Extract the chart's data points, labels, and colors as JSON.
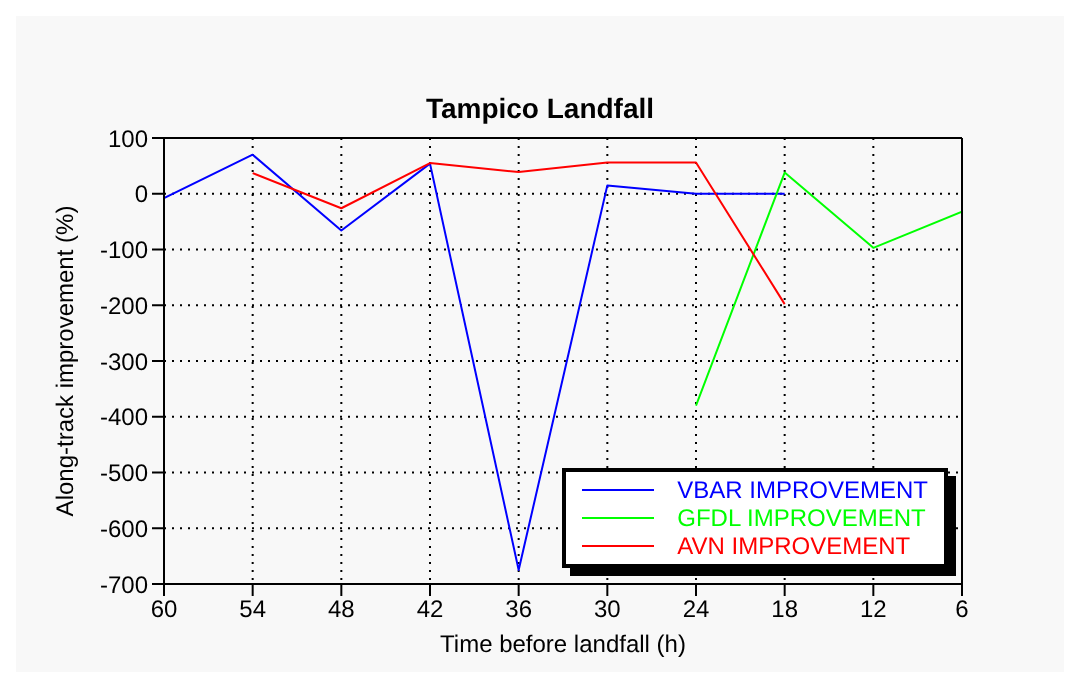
{
  "chart_data": {
    "type": "line",
    "title": "Tampico Landfall",
    "xlabel": "Time before landfall (h)",
    "ylabel": "Along-track improvement (%)",
    "x": [
      60,
      54,
      48,
      42,
      36,
      30,
      24,
      18,
      12,
      6
    ],
    "series": [
      {
        "name": "VBAR IMPROVEMENT",
        "color": "#0000ff",
        "values": [
          -8,
          70,
          -66,
          54,
          -675,
          15,
          0,
          0,
          null,
          null
        ]
      },
      {
        "name": "GFDL IMPROVEMENT",
        "color": "#00ff00",
        "values": [
          null,
          null,
          null,
          null,
          null,
          null,
          -380,
          38,
          -97,
          -32
        ]
      },
      {
        "name": "AVN IMPROVEMENT",
        "color": "#ff0000",
        "values": [
          null,
          37,
          -26,
          55,
          39,
          56,
          56,
          -198,
          null,
          null
        ]
      }
    ],
    "xlim": [
      60,
      6
    ],
    "xticks": [
      60,
      54,
      48,
      42,
      36,
      30,
      24,
      18,
      12,
      6
    ],
    "ylim": [
      -700,
      100
    ],
    "yticks": [
      -700,
      -600,
      -500,
      -400,
      -300,
      -200,
      -100,
      0,
      100
    ],
    "grid": true,
    "legend": "bottom right",
    "marker": "none",
    "line_style": "solid"
  }
}
